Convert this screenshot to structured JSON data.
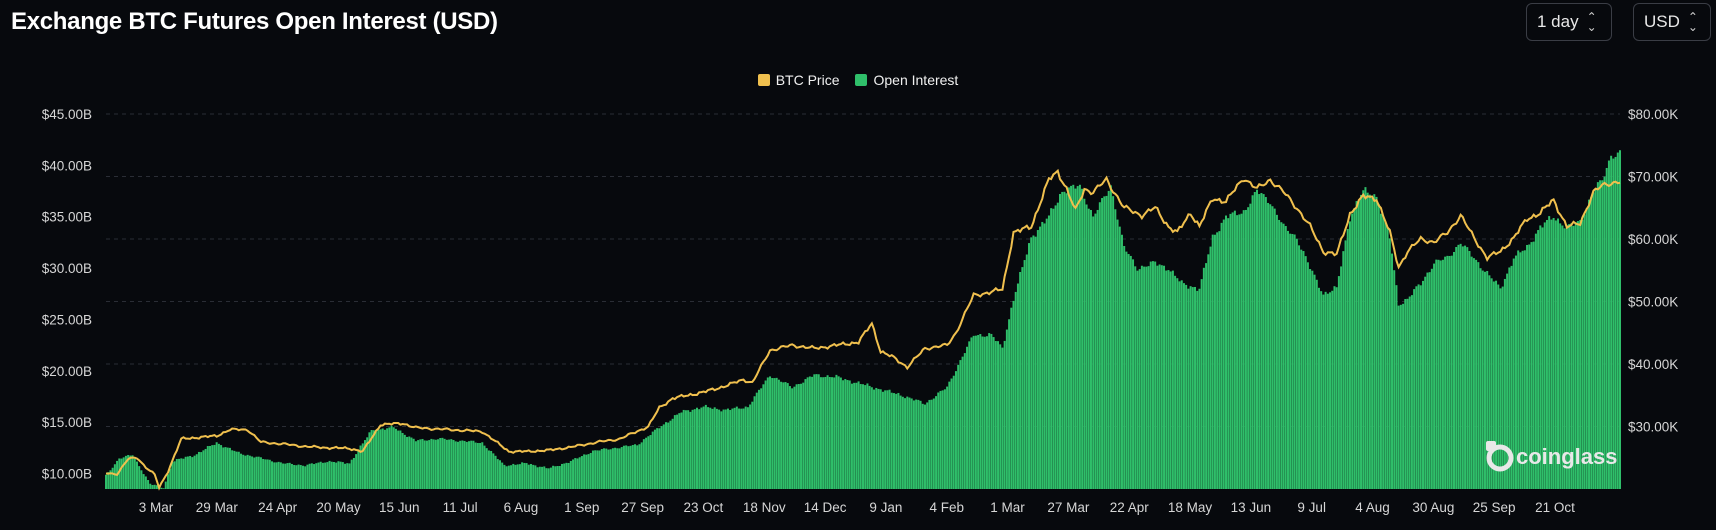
{
  "header": {
    "title": "Exchange BTC Futures Open Interest (USD)",
    "interval_select": {
      "value": "1 day"
    },
    "currency_select": {
      "value": "USD"
    }
  },
  "watermark": {
    "text": "coinglass"
  },
  "colors": {
    "price": "#f0c04e",
    "open_interest": "#2fbf6a",
    "background": "#07090d",
    "grid": "#2a2d35"
  },
  "icons": {
    "select_chevron": "chevron-up-down-icon",
    "watermark_logo": "coinglass-logo-icon"
  },
  "chart_data": {
    "type": "bar+line",
    "legend_position": "top-center",
    "grid": true,
    "x_ticks": [
      "3 Mar",
      "29 Mar",
      "24 Apr",
      "20 May",
      "15 Jun",
      "11 Jul",
      "6 Aug",
      "1 Sep",
      "27 Sep",
      "23 Oct",
      "18 Nov",
      "14 Dec",
      "9 Jan",
      "4 Feb",
      "1 Mar",
      "27 Mar",
      "22 Apr",
      "18 May",
      "13 Jun",
      "9 Jul",
      "4 Aug",
      "30 Aug",
      "25 Sep",
      "21 Oct"
    ],
    "y_left": {
      "ticks": [
        "$10.00B",
        "$15.00B",
        "$20.00B",
        "$25.00B",
        "$30.00B",
        "$35.00B",
        "$40.00B",
        "$45.00B"
      ],
      "range": [
        8.5,
        45
      ]
    },
    "y_right": {
      "ticks": [
        "$30.00K",
        "$40.00K",
        "$50.00K",
        "$60.00K",
        "$70.00K",
        "$80.00K"
      ],
      "range": [
        20000,
        80000
      ]
    },
    "series": [
      {
        "name": "Open Interest",
        "type": "bar",
        "axis": "left",
        "unit": "USD billions",
        "anchors": [
          [
            0,
            9.8
          ],
          [
            6,
            11.5
          ],
          [
            12,
            11.8
          ],
          [
            20,
            9.0
          ],
          [
            26,
            8.6
          ],
          [
            30,
            11.2
          ],
          [
            40,
            11.8
          ],
          [
            50,
            13.0
          ],
          [
            60,
            12.0
          ],
          [
            70,
            11.5
          ],
          [
            80,
            11.0
          ],
          [
            90,
            10.8
          ],
          [
            100,
            11.2
          ],
          [
            110,
            11.0
          ],
          [
            120,
            14.2
          ],
          [
            130,
            14.5
          ],
          [
            140,
            13.2
          ],
          [
            150,
            13.4
          ],
          [
            160,
            13.2
          ],
          [
            170,
            13.0
          ],
          [
            180,
            10.8
          ],
          [
            190,
            11.0
          ],
          [
            200,
            10.5
          ],
          [
            210,
            11.2
          ],
          [
            220,
            12.2
          ],
          [
            230,
            12.5
          ],
          [
            240,
            12.8
          ],
          [
            250,
            14.5
          ],
          [
            260,
            16.0
          ],
          [
            270,
            16.5
          ],
          [
            280,
            16.2
          ],
          [
            290,
            16.5
          ],
          [
            300,
            19.6
          ],
          [
            310,
            18.4
          ],
          [
            320,
            19.6
          ],
          [
            330,
            19.4
          ],
          [
            340,
            18.8
          ],
          [
            350,
            18.2
          ],
          [
            360,
            17.6
          ],
          [
            370,
            16.8
          ],
          [
            380,
            18.4
          ],
          [
            386,
            21.0
          ],
          [
            392,
            23.5
          ],
          [
            400,
            23.5
          ],
          [
            405,
            22.2
          ],
          [
            410,
            27.0
          ],
          [
            418,
            33.0
          ],
          [
            426,
            35.0
          ],
          [
            432,
            37.5
          ],
          [
            440,
            38.0
          ],
          [
            446,
            35.0
          ],
          [
            454,
            38.0
          ],
          [
            460,
            32.0
          ],
          [
            466,
            30.0
          ],
          [
            474,
            30.5
          ],
          [
            480,
            30.0
          ],
          [
            486,
            28.5
          ],
          [
            494,
            28.0
          ],
          [
            500,
            33.0
          ],
          [
            506,
            35.0
          ],
          [
            514,
            35.5
          ],
          [
            520,
            37.5
          ],
          [
            526,
            36.5
          ],
          [
            532,
            34.0
          ],
          [
            538,
            33.0
          ],
          [
            544,
            30.0
          ],
          [
            550,
            27.5
          ],
          [
            556,
            28.0
          ],
          [
            562,
            35.0
          ],
          [
            568,
            37.5
          ],
          [
            574,
            37.0
          ],
          [
            580,
            33.0
          ],
          [
            584,
            26.5
          ],
          [
            588,
            27.0
          ],
          [
            594,
            28.5
          ],
          [
            600,
            30.5
          ],
          [
            606,
            31.0
          ],
          [
            612,
            32.5
          ],
          [
            618,
            31.0
          ],
          [
            624,
            29.5
          ],
          [
            630,
            28.0
          ],
          [
            636,
            31.0
          ],
          [
            642,
            32.0
          ],
          [
            648,
            34.0
          ],
          [
            654,
            35.0
          ],
          [
            660,
            34.0
          ],
          [
            666,
            34.5
          ],
          [
            672,
            37.5
          ],
          [
            676,
            38.5
          ],
          [
            680,
            41.0
          ],
          [
            684,
            41.2
          ]
        ]
      },
      {
        "name": "BTC Price",
        "type": "line",
        "axis": "right",
        "unit": "USD",
        "anchors": [
          [
            0,
            22500
          ],
          [
            5,
            22400
          ],
          [
            10,
            24800
          ],
          [
            14,
            25000
          ],
          [
            18,
            23500
          ],
          [
            22,
            22300
          ],
          [
            24,
            20200
          ],
          [
            28,
            22800
          ],
          [
            34,
            28000
          ],
          [
            40,
            28200
          ],
          [
            50,
            28500
          ],
          [
            56,
            29500
          ],
          [
            64,
            29500
          ],
          [
            70,
            27500
          ],
          [
            80,
            27200
          ],
          [
            90,
            26800
          ],
          [
            100,
            26600
          ],
          [
            110,
            26500
          ],
          [
            116,
            26000
          ],
          [
            124,
            30300
          ],
          [
            134,
            30500
          ],
          [
            140,
            29800
          ],
          [
            150,
            29600
          ],
          [
            160,
            29400
          ],
          [
            170,
            29200
          ],
          [
            182,
            26000
          ],
          [
            190,
            26000
          ],
          [
            200,
            26200
          ],
          [
            210,
            26700
          ],
          [
            222,
            27500
          ],
          [
            232,
            28000
          ],
          [
            245,
            30000
          ],
          [
            250,
            33000
          ],
          [
            256,
            34500
          ],
          [
            270,
            35500
          ],
          [
            280,
            36500
          ],
          [
            288,
            37500
          ],
          [
            292,
            37000
          ],
          [
            300,
            42200
          ],
          [
            310,
            43000
          ],
          [
            320,
            42500
          ],
          [
            330,
            43000
          ],
          [
            340,
            43500
          ],
          [
            346,
            46500
          ],
          [
            350,
            42000
          ],
          [
            356,
            41000
          ],
          [
            362,
            39500
          ],
          [
            370,
            42500
          ],
          [
            380,
            43000
          ],
          [
            384,
            45000
          ],
          [
            392,
            51000
          ],
          [
            400,
            51500
          ],
          [
            405,
            52000
          ],
          [
            410,
            61000
          ],
          [
            418,
            62000
          ],
          [
            426,
            69500
          ],
          [
            430,
            70800
          ],
          [
            434,
            68000
          ],
          [
            438,
            64500
          ],
          [
            442,
            68000
          ],
          [
            446,
            67500
          ],
          [
            452,
            69500
          ],
          [
            460,
            65000
          ],
          [
            468,
            63800
          ],
          [
            474,
            65000
          ],
          [
            480,
            62000
          ],
          [
            484,
            61000
          ],
          [
            490,
            64200
          ],
          [
            494,
            62000
          ],
          [
            500,
            66500
          ],
          [
            506,
            66000
          ],
          [
            514,
            69800
          ],
          [
            520,
            68000
          ],
          [
            526,
            69500
          ],
          [
            532,
            67500
          ],
          [
            538,
            65000
          ],
          [
            544,
            62000
          ],
          [
            550,
            58000
          ],
          [
            556,
            57500
          ],
          [
            562,
            64000
          ],
          [
            568,
            66800
          ],
          [
            574,
            66500
          ],
          [
            580,
            61000
          ],
          [
            584,
            55500
          ],
          [
            588,
            58000
          ],
          [
            594,
            60000
          ],
          [
            600,
            59500
          ],
          [
            606,
            61000
          ],
          [
            612,
            63800
          ],
          [
            618,
            60200
          ],
          [
            624,
            57000
          ],
          [
            630,
            58000
          ],
          [
            636,
            60200
          ],
          [
            642,
            63200
          ],
          [
            648,
            64200
          ],
          [
            654,
            66200
          ],
          [
            660,
            62000
          ],
          [
            666,
            62500
          ],
          [
            672,
            67500
          ],
          [
            676,
            68500
          ],
          [
            680,
            69000
          ],
          [
            684,
            69200
          ]
        ]
      }
    ]
  }
}
